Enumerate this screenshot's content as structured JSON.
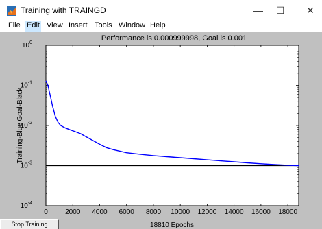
{
  "window": {
    "title": "Training with TRAINGD",
    "minimize_glyph": "—",
    "maximize_glyph": "☐",
    "close_glyph": "✕"
  },
  "menu": {
    "items": [
      {
        "label": "File"
      },
      {
        "label": "Edit"
      },
      {
        "label": "View"
      },
      {
        "label": "Insert"
      },
      {
        "label": "Tools"
      },
      {
        "label": "Window"
      },
      {
        "label": "Help"
      }
    ],
    "active_index": 1
  },
  "stop_button_label": "Stop Training",
  "chart_data": {
    "type": "line",
    "title": "Performance is 0.000999998, Goal is 0.001",
    "xlabel": "18810 Epochs",
    "ylabel": "Training-Blue  Goal-Black",
    "xlim": [
      0,
      18810
    ],
    "ylim": [
      0.0001,
      1
    ],
    "yscale": "log",
    "x_ticks": [
      0,
      2000,
      4000,
      6000,
      8000,
      10000,
      12000,
      14000,
      16000,
      18000
    ],
    "y_ticks": [
      {
        "value": 1,
        "base": "10",
        "exp": "0"
      },
      {
        "value": 0.1,
        "base": "10",
        "exp": "-1"
      },
      {
        "value": 0.01,
        "base": "10",
        "exp": "-2"
      },
      {
        "value": 0.001,
        "base": "10",
        "exp": "-3"
      },
      {
        "value": 0.0001,
        "base": "10",
        "exp": "-4"
      }
    ],
    "grid": false,
    "colors": {
      "training": "#0000ff",
      "goal": "#000000",
      "axes_bg": "#ffffff"
    },
    "goal": 0.001,
    "training": {
      "x": [
        0,
        150,
        300,
        500,
        700,
        900,
        1100,
        1400,
        1800,
        2200,
        2600,
        3000,
        3500,
        4000,
        4500,
        5000,
        6000,
        7000,
        8000,
        9000,
        10000,
        11000,
        12000,
        13000,
        14000,
        15000,
        16000,
        17000,
        18000,
        18810
      ],
      "y": [
        0.13,
        0.1,
        0.06,
        0.03,
        0.017,
        0.012,
        0.01,
        0.0088,
        0.0078,
        0.007,
        0.0062,
        0.0052,
        0.0042,
        0.0034,
        0.0028,
        0.0025,
        0.0021,
        0.00192,
        0.00178,
        0.00167,
        0.00157,
        0.00148,
        0.00139,
        0.00131,
        0.00124,
        0.00117,
        0.00111,
        0.00106,
        0.00102,
        0.001
      ]
    }
  }
}
